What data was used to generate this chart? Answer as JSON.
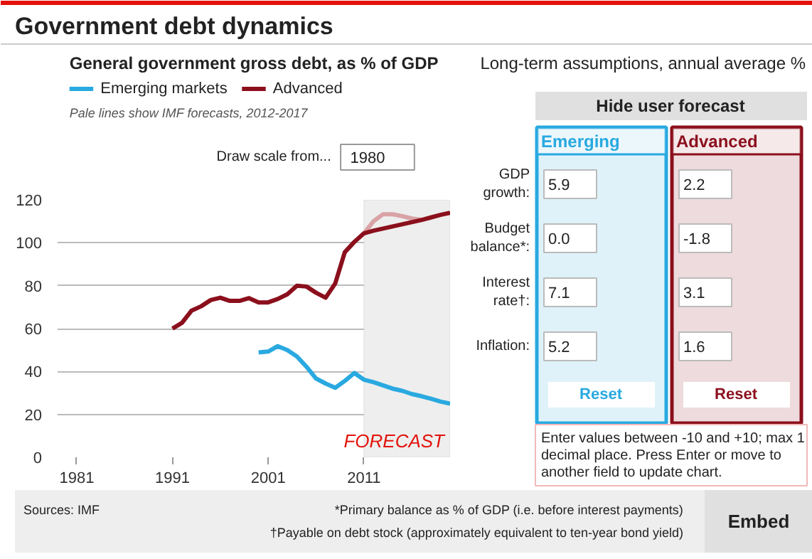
{
  "chart_data": [
    {
      "type": "line",
      "title": "Government debt dynamics",
      "subtitle": "General government gross debt, as % of GDP",
      "annotations": [
        "Pale lines show IMF forecasts, 2012-2017",
        "Draw scale from...",
        "1980",
        "Sources: IMF"
      ],
      "xlim": [
        1979,
        2020
      ],
      "xticks": [
        1981,
        1991,
        2001,
        2011
      ],
      "ylim": [
        0,
        120
      ],
      "yticks": [
        0,
        20,
        40,
        60,
        80,
        100,
        120
      ],
      "grid": "y",
      "legend": "top left",
      "marker": "none",
      "line_style": "solid",
      "bands": [
        {
          "axis": "x",
          "from": 2011,
          "to": 2020,
          "label": "FORECAST",
          "color": "#eeeeee"
        }
      ],
      "series": [
        {
          "color": "#d9a3a6",
          "x": [
            2011,
            2012,
            2013,
            2014,
            2015,
            2016,
            2017
          ],
          "values": [
            104.4,
            110,
            113.3,
            113.3,
            112.4,
            111.3,
            110.7
          ]
        },
        {
          "name": "Emerging markets",
          "color": "#29a9e0",
          "x": [
            2000,
            2001,
            2002,
            2003,
            2004,
            2005,
            2006,
            2007,
            2008,
            2009,
            2010,
            2011,
            2012,
            2013,
            2014,
            2015,
            2016,
            2017,
            2018,
            2019,
            2020
          ],
          "values": [
            48.9,
            49.3,
            51.8,
            50,
            47,
            42.2,
            36.7,
            34.4,
            32.4,
            35.6,
            39.3,
            36.2,
            35,
            33.5,
            32,
            31,
            29.5,
            28.5,
            27.3,
            26,
            25
          ]
        },
        {
          "name": "Advanced",
          "color": "#8b0f1c",
          "x": [
            1991,
            1992,
            1993,
            1994,
            1995,
            1996,
            1997,
            1998,
            1999,
            2000,
            2001,
            2002,
            2003,
            2004,
            2005,
            2006,
            2007,
            2008,
            2009,
            2010,
            2011,
            2012,
            2013,
            2014,
            2015,
            2016,
            2017,
            2018,
            2019,
            2020
          ],
          "values": [
            60,
            62.7,
            68.4,
            70.4,
            73.3,
            74.4,
            72.9,
            72.9,
            74.2,
            72.2,
            72.2,
            73.8,
            76,
            80,
            79.6,
            76.7,
            74.4,
            81,
            95.6,
            100.4,
            104.4,
            105.6,
            106.6,
            107.6,
            108.6,
            109.6,
            110.6,
            111.8,
            113,
            114
          ]
        }
      ]
    },
    {
      "type": "other",
      "title": "Long-term assumptions, annual average %",
      "categories": [
        "Emerging",
        "Advanced"
      ],
      "colors": [
        "#29a9e0",
        "#8b0f1c"
      ],
      "y_categories": [
        "GDP growth:",
        "Budget balance*:",
        "Interest rate†:",
        "Inflation:"
      ],
      "cell_labels": [
        [
          "5.9",
          "2.2"
        ],
        [
          "0.0",
          "-1.8"
        ],
        [
          "7.1",
          "3.1"
        ],
        [
          "5.2",
          "1.6"
        ]
      ],
      "annotations": [
        "Hide user forecast",
        "Reset",
        "Reset",
        "Enter values between -10 and +10; max 1 decimal place. Press Enter or move to another field to update chart.",
        "*Primary balance as % of GDP (i.e. before interest payments)",
        "†Payable on debt stock (approximately equivalent to ten-year bond yield)",
        "Embed"
      ]
    }
  ]
}
